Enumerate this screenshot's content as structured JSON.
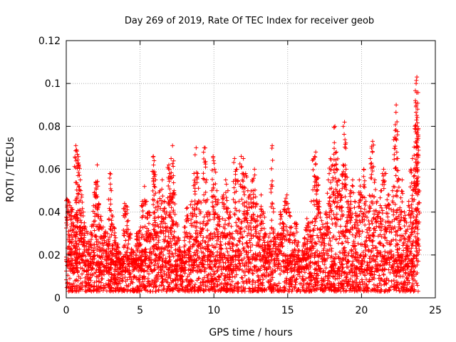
{
  "chart_data": {
    "type": "scatter",
    "title": "Day 269 of 2019, Rate Of TEC Index for receiver geob",
    "xlabel": "GPS time / hours",
    "ylabel": "ROTI / TECUs",
    "xlim": [
      0,
      25
    ],
    "ylim": [
      0,
      0.12
    ],
    "xticks": [
      0,
      5,
      10,
      15,
      20,
      25
    ],
    "xtick_labels": [
      "0",
      "5",
      "10",
      "15",
      "20",
      "25"
    ],
    "yticks": [
      0,
      0.02,
      0.04,
      0.06,
      0.08,
      0.1,
      0.12
    ],
    "ytick_labels": [
      "0",
      "0.02",
      "0.04",
      "0.06",
      "0.08",
      "0.1",
      "0.12"
    ],
    "grid": true,
    "marker": "plus",
    "series": [
      {
        "name": "ROTI",
        "color": "#ff0000",
        "points": [
          [
            0.05,
            0.046
          ],
          [
            0.15,
            0.045
          ],
          [
            0.25,
            0.043
          ],
          [
            0.35,
            0.042
          ],
          [
            0.45,
            0.035
          ],
          [
            0.55,
            0.038
          ],
          [
            0.65,
            0.071
          ],
          [
            0.7,
            0.069
          ],
          [
            0.75,
            0.067
          ],
          [
            0.85,
            0.062
          ],
          [
            0.95,
            0.055
          ],
          [
            1.05,
            0.048
          ],
          [
            1.15,
            0.04
          ],
          [
            1.3,
            0.033
          ],
          [
            1.45,
            0.03
          ],
          [
            1.6,
            0.026
          ],
          [
            1.75,
            0.034
          ],
          [
            1.9,
            0.049
          ],
          [
            2.0,
            0.054
          ],
          [
            2.1,
            0.062
          ],
          [
            2.2,
            0.044
          ],
          [
            2.35,
            0.038
          ],
          [
            2.5,
            0.033
          ],
          [
            2.65,
            0.031
          ],
          [
            2.8,
            0.03
          ],
          [
            2.95,
            0.058
          ],
          [
            3.05,
            0.05
          ],
          [
            3.2,
            0.033
          ],
          [
            3.35,
            0.028
          ],
          [
            3.5,
            0.025
          ],
          [
            3.65,
            0.021
          ],
          [
            3.8,
            0.018
          ],
          [
            3.95,
            0.044
          ],
          [
            4.05,
            0.043
          ],
          [
            4.2,
            0.036
          ],
          [
            4.35,
            0.03
          ],
          [
            4.5,
            0.022
          ],
          [
            4.65,
            0.018
          ],
          [
            4.8,
            0.03
          ],
          [
            4.95,
            0.031
          ],
          [
            5.05,
            0.033
          ],
          [
            5.15,
            0.045
          ],
          [
            5.3,
            0.052
          ],
          [
            5.45,
            0.045
          ],
          [
            5.6,
            0.04
          ],
          [
            5.75,
            0.03
          ],
          [
            5.9,
            0.066
          ],
          [
            5.95,
            0.064
          ],
          [
            6.05,
            0.055
          ],
          [
            6.2,
            0.045
          ],
          [
            6.35,
            0.05
          ],
          [
            6.5,
            0.055
          ],
          [
            6.65,
            0.045
          ],
          [
            6.8,
            0.04
          ],
          [
            6.95,
            0.062
          ],
          [
            7.0,
            0.06
          ],
          [
            7.1,
            0.065
          ],
          [
            7.2,
            0.071
          ],
          [
            7.3,
            0.05
          ],
          [
            7.45,
            0.035
          ],
          [
            7.6,
            0.028
          ],
          [
            7.75,
            0.022
          ],
          [
            7.9,
            0.017
          ],
          [
            8.05,
            0.033
          ],
          [
            8.2,
            0.042
          ],
          [
            8.35,
            0.03
          ],
          [
            8.5,
            0.045
          ],
          [
            8.65,
            0.058
          ],
          [
            8.8,
            0.07
          ],
          [
            8.9,
            0.058
          ],
          [
            9.05,
            0.045
          ],
          [
            9.2,
            0.032
          ],
          [
            9.35,
            0.07
          ],
          [
            9.5,
            0.055
          ],
          [
            9.65,
            0.04
          ],
          [
            9.8,
            0.03
          ],
          [
            9.95,
            0.066
          ],
          [
            10.05,
            0.06
          ],
          [
            10.2,
            0.05
          ],
          [
            10.35,
            0.038
          ],
          [
            10.5,
            0.03
          ],
          [
            10.65,
            0.048
          ],
          [
            10.8,
            0.055
          ],
          [
            10.95,
            0.05
          ],
          [
            11.1,
            0.04
          ],
          [
            11.25,
            0.03
          ],
          [
            11.4,
            0.065
          ],
          [
            11.55,
            0.06
          ],
          [
            11.7,
            0.045
          ],
          [
            11.85,
            0.066
          ],
          [
            12.0,
            0.065
          ],
          [
            12.15,
            0.058
          ],
          [
            12.3,
            0.05
          ],
          [
            12.45,
            0.048
          ],
          [
            12.6,
            0.055
          ],
          [
            12.75,
            0.06
          ],
          [
            12.9,
            0.044
          ],
          [
            13.05,
            0.03
          ],
          [
            13.2,
            0.048
          ],
          [
            13.35,
            0.04
          ],
          [
            13.5,
            0.03
          ],
          [
            13.65,
            0.026
          ],
          [
            13.8,
            0.03
          ],
          [
            13.95,
            0.071
          ],
          [
            14.05,
            0.032
          ],
          [
            14.2,
            0.028
          ],
          [
            14.35,
            0.03
          ],
          [
            14.5,
            0.04
          ],
          [
            14.65,
            0.035
          ],
          [
            14.8,
            0.045
          ],
          [
            14.95,
            0.048
          ],
          [
            15.1,
            0.04
          ],
          [
            15.25,
            0.033
          ],
          [
            15.4,
            0.03
          ],
          [
            15.55,
            0.035
          ],
          [
            15.7,
            0.026
          ],
          [
            15.85,
            0.018
          ],
          [
            16.0,
            0.022
          ],
          [
            16.15,
            0.028
          ],
          [
            16.3,
            0.037
          ],
          [
            16.45,
            0.035
          ],
          [
            16.6,
            0.045
          ],
          [
            16.75,
            0.065
          ],
          [
            16.9,
            0.068
          ],
          [
            17.0,
            0.056
          ],
          [
            17.15,
            0.045
          ],
          [
            17.3,
            0.036
          ],
          [
            17.45,
            0.03
          ],
          [
            17.6,
            0.04
          ],
          [
            17.75,
            0.055
          ],
          [
            17.9,
            0.065
          ],
          [
            18.05,
            0.062
          ],
          [
            18.2,
            0.08
          ],
          [
            18.3,
            0.068
          ],
          [
            18.45,
            0.055
          ],
          [
            18.6,
            0.048
          ],
          [
            18.75,
            0.062
          ],
          [
            18.85,
            0.082
          ],
          [
            18.95,
            0.06
          ],
          [
            19.1,
            0.045
          ],
          [
            19.25,
            0.05
          ],
          [
            19.4,
            0.055
          ],
          [
            19.55,
            0.045
          ],
          [
            19.7,
            0.038
          ],
          [
            19.85,
            0.055
          ],
          [
            20.0,
            0.048
          ],
          [
            20.15,
            0.06
          ],
          [
            20.3,
            0.045
          ],
          [
            20.45,
            0.04
          ],
          [
            20.6,
            0.065
          ],
          [
            20.75,
            0.073
          ],
          [
            20.9,
            0.055
          ],
          [
            21.05,
            0.045
          ],
          [
            21.2,
            0.04
          ],
          [
            21.35,
            0.05
          ],
          [
            21.5,
            0.06
          ],
          [
            21.65,
            0.058
          ],
          [
            21.8,
            0.048
          ],
          [
            21.95,
            0.035
          ],
          [
            22.1,
            0.05
          ],
          [
            22.25,
            0.075
          ],
          [
            22.35,
            0.09
          ],
          [
            22.45,
            0.065
          ],
          [
            22.6,
            0.042
          ],
          [
            22.75,
            0.055
          ],
          [
            22.9,
            0.04
          ],
          [
            23.05,
            0.035
          ],
          [
            23.2,
            0.045
          ],
          [
            23.35,
            0.06
          ],
          [
            23.45,
            0.065
          ],
          [
            23.55,
            0.06
          ],
          [
            23.65,
            0.092
          ],
          [
            23.7,
            0.1
          ],
          [
            23.75,
            0.103
          ],
          [
            23.8,
            0.088
          ],
          [
            23.85,
            0.079
          ]
        ],
        "baseline_band": [
          0.003,
          0.02
        ]
      }
    ]
  }
}
